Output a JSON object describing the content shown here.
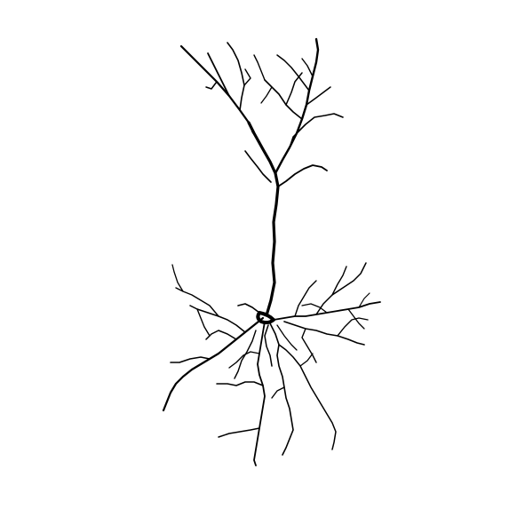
{
  "image": {
    "background_color": "#ffffff",
    "stroke_color": "#000000",
    "subject": "neuron-morphology-drawing"
  }
}
